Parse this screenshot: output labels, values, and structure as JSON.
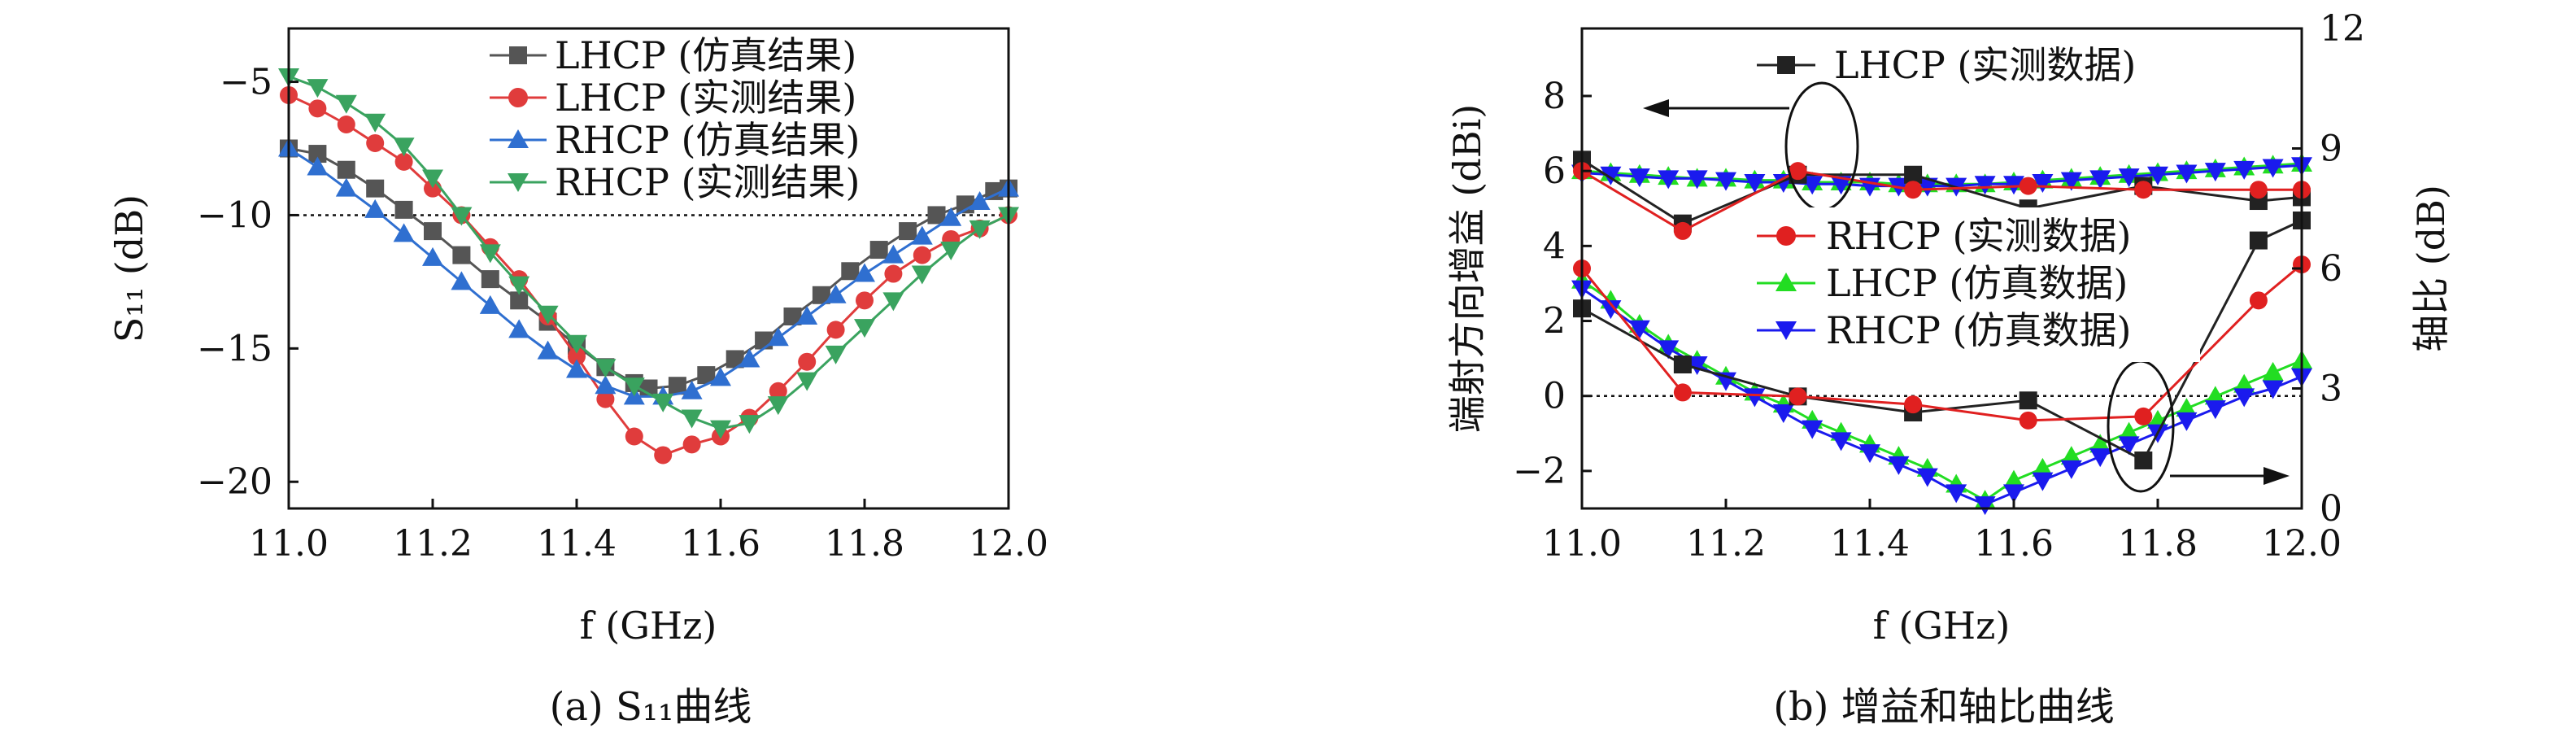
{
  "figure": {
    "caption_a": "(a) S₁₁曲线",
    "caption_b": "(b) 增益和轴比曲线"
  },
  "chart_data": [
    {
      "type": "line",
      "panel": "a",
      "xlabel": "f (GHz)",
      "ylabel": "S₁₁ (dB)",
      "xlim": [
        11.0,
        12.0
      ],
      "ylim": [
        -21,
        -3
      ],
      "x_ticks": [
        "11.0",
        "11.2",
        "11.4",
        "11.6",
        "11.8",
        "12.0"
      ],
      "y_ticks": [
        "−5",
        "−10",
        "−15",
        "−20"
      ],
      "reference_line": -10,
      "legend_position": "top-right",
      "series": [
        {
          "name": "LHCP (仿真结果)",
          "color": "#555555",
          "marker": "square",
          "x": [
            11.0,
            11.04,
            11.08,
            11.12,
            11.16,
            11.2,
            11.24,
            11.28,
            11.32,
            11.36,
            11.4,
            11.44,
            11.48,
            11.5,
            11.54,
            11.58,
            11.62,
            11.66,
            11.7,
            11.74,
            11.78,
            11.82,
            11.86,
            11.9,
            11.94,
            11.98,
            12.0
          ],
          "values": [
            -7.5,
            -7.7,
            -8.3,
            -9.0,
            -9.8,
            -10.6,
            -11.5,
            -12.4,
            -13.2,
            -14.0,
            -14.9,
            -15.7,
            -16.3,
            -16.5,
            -16.4,
            -16.0,
            -15.4,
            -14.7,
            -13.8,
            -13.0,
            -12.1,
            -11.3,
            -10.6,
            -10.0,
            -9.6,
            -9.1,
            -9.0
          ]
        },
        {
          "name": "LHCP (实测结果)",
          "color": "#e03c3c",
          "marker": "circle",
          "x": [
            11.0,
            11.04,
            11.08,
            11.12,
            11.16,
            11.2,
            11.24,
            11.28,
            11.32,
            11.36,
            11.4,
            11.44,
            11.48,
            11.52,
            11.56,
            11.6,
            11.64,
            11.68,
            11.72,
            11.76,
            11.8,
            11.84,
            11.88,
            11.92,
            11.96,
            12.0
          ],
          "values": [
            -5.5,
            -6.0,
            -6.6,
            -7.3,
            -8.0,
            -9.0,
            -10.0,
            -11.2,
            -12.4,
            -13.8,
            -15.3,
            -16.9,
            -18.3,
            -19.0,
            -18.6,
            -18.3,
            -17.6,
            -16.6,
            -15.5,
            -14.3,
            -13.2,
            -12.2,
            -11.5,
            -10.9,
            -10.5,
            -10.0
          ]
        },
        {
          "name": "RHCP (仿真结果)",
          "color": "#2f6fd0",
          "marker": "triangle-up",
          "x": [
            11.0,
            11.04,
            11.08,
            11.12,
            11.16,
            11.2,
            11.24,
            11.28,
            11.32,
            11.36,
            11.4,
            11.44,
            11.48,
            11.52,
            11.56,
            11.6,
            11.64,
            11.68,
            11.72,
            11.76,
            11.8,
            11.84,
            11.88,
            11.92,
            11.96,
            12.0
          ],
          "values": [
            -7.5,
            -8.2,
            -9.0,
            -9.8,
            -10.7,
            -11.6,
            -12.5,
            -13.4,
            -14.3,
            -15.1,
            -15.8,
            -16.4,
            -16.8,
            -16.8,
            -16.6,
            -16.1,
            -15.4,
            -14.6,
            -13.8,
            -13.0,
            -12.2,
            -11.5,
            -10.8,
            -10.1,
            -9.5,
            -9.0
          ]
        },
        {
          "name": "RHCP (实测结果)",
          "color": "#3aa35f",
          "marker": "triangle-down",
          "x": [
            11.0,
            11.04,
            11.08,
            11.12,
            11.16,
            11.2,
            11.24,
            11.28,
            11.32,
            11.36,
            11.4,
            11.44,
            11.48,
            11.52,
            11.56,
            11.6,
            11.64,
            11.68,
            11.72,
            11.76,
            11.8,
            11.84,
            11.88,
            11.92,
            11.96,
            12.0
          ],
          "values": [
            -4.8,
            -5.2,
            -5.8,
            -6.5,
            -7.4,
            -8.6,
            -10.0,
            -11.4,
            -12.6,
            -13.7,
            -14.8,
            -15.7,
            -16.4,
            -17.0,
            -17.6,
            -18.0,
            -17.8,
            -17.1,
            -16.2,
            -15.2,
            -14.2,
            -13.2,
            -12.2,
            -11.3,
            -10.5,
            -10.0
          ]
        }
      ]
    },
    {
      "type": "line",
      "panel": "b",
      "xlabel": "f (GHz)",
      "ylabel": "端射方向增益 (dBi)",
      "ylabel_right": "轴比 (dB)",
      "xlim": [
        11.0,
        12.0
      ],
      "ylim": [
        -3,
        9.8
      ],
      "ylim_right": [
        0,
        12
      ],
      "x_ticks": [
        "11.0",
        "11.2",
        "11.4",
        "11.6",
        "11.8",
        "12.0"
      ],
      "y_ticks": [
        "8",
        "6",
        "4",
        "2",
        "0",
        "−2"
      ],
      "y_ticks_right": [
        "12",
        "9",
        "6",
        "3",
        "0"
      ],
      "reference_line": 0,
      "gain_series": [
        {
          "name": "LHCP (实测数据)",
          "color": "#222222",
          "marker": "square",
          "x": [
            11.0,
            11.14,
            11.3,
            11.46,
            11.62,
            11.78,
            11.94,
            12.0
          ],
          "values": [
            6.3,
            4.6,
            5.9,
            5.9,
            5.0,
            5.6,
            5.2,
            5.3
          ]
        },
        {
          "name": "RHCP (实测数据)",
          "color": "#e02020",
          "marker": "circle",
          "x": [
            11.0,
            11.14,
            11.3,
            11.46,
            11.62,
            11.78,
            11.94,
            12.0
          ],
          "values": [
            6.0,
            4.4,
            6.0,
            5.5,
            5.6,
            5.5,
            5.5,
            5.5
          ]
        },
        {
          "name": "LHCP (仿真数据)",
          "color": "#22dd22",
          "marker": "triangle-up",
          "x": [
            11.0,
            11.04,
            11.08,
            11.12,
            11.16,
            11.2,
            11.24,
            11.28,
            11.32,
            11.36,
            11.4,
            11.44,
            11.48,
            11.52,
            11.56,
            11.6,
            11.64,
            11.68,
            11.72,
            11.76,
            11.8,
            11.84,
            11.88,
            11.92,
            11.96,
            12.0
          ],
          "values": [
            6.0,
            5.95,
            5.9,
            5.85,
            5.8,
            5.8,
            5.75,
            5.75,
            5.7,
            5.7,
            5.7,
            5.65,
            5.65,
            5.65,
            5.65,
            5.7,
            5.75,
            5.8,
            5.85,
            5.9,
            5.95,
            6.0,
            6.05,
            6.1,
            6.15,
            6.2
          ]
        },
        {
          "name": "RHCP (仿真数据)",
          "color": "#1a1aee",
          "marker": "triangle-down",
          "x": [
            11.0,
            11.04,
            11.08,
            11.12,
            11.16,
            11.2,
            11.24,
            11.28,
            11.32,
            11.36,
            11.4,
            11.44,
            11.48,
            11.52,
            11.56,
            11.6,
            11.64,
            11.68,
            11.72,
            11.76,
            11.8,
            11.84,
            11.88,
            11.92,
            11.96,
            12.0
          ],
          "values": [
            5.95,
            5.9,
            5.85,
            5.8,
            5.8,
            5.75,
            5.7,
            5.7,
            5.65,
            5.65,
            5.6,
            5.6,
            5.6,
            5.6,
            5.65,
            5.65,
            5.7,
            5.75,
            5.8,
            5.85,
            5.9,
            5.95,
            6.0,
            6.05,
            6.1,
            6.15
          ]
        }
      ],
      "axial_ratio_series": [
        {
          "name": "LHCP (实测数据)",
          "color": "#222222",
          "marker": "square",
          "x": [
            11.0,
            11.14,
            11.3,
            11.46,
            11.62,
            11.78,
            11.94,
            12.0
          ],
          "values": [
            5.0,
            3.6,
            2.8,
            2.4,
            2.7,
            1.2,
            6.7,
            7.2
          ]
        },
        {
          "name": "RHCP (实测数据)",
          "color": "#e02020",
          "marker": "circle",
          "x": [
            11.0,
            11.14,
            11.3,
            11.46,
            11.62,
            11.78,
            11.94,
            12.0
          ],
          "values": [
            6.0,
            2.9,
            2.8,
            2.6,
            2.2,
            2.3,
            5.2,
            6.1
          ]
        },
        {
          "name": "LHCP (仿真数据)",
          "color": "#22dd22",
          "marker": "triangle-up",
          "x": [
            11.0,
            11.04,
            11.08,
            11.12,
            11.16,
            11.2,
            11.24,
            11.28,
            11.32,
            11.36,
            11.4,
            11.44,
            11.48,
            11.52,
            11.56,
            11.6,
            11.64,
            11.68,
            11.72,
            11.76,
            11.8,
            11.84,
            11.88,
            11.92,
            11.96,
            12.0
          ],
          "values": [
            5.7,
            5.2,
            4.6,
            4.1,
            3.7,
            3.3,
            2.9,
            2.6,
            2.2,
            1.9,
            1.6,
            1.3,
            1.0,
            0.6,
            0.2,
            0.7,
            1.0,
            1.3,
            1.6,
            1.9,
            2.2,
            2.5,
            2.8,
            3.1,
            3.4,
            3.7
          ]
        },
        {
          "name": "RHCP (仿真数据)",
          "color": "#1a1aee",
          "marker": "triangle-down",
          "x": [
            11.0,
            11.04,
            11.08,
            11.12,
            11.16,
            11.2,
            11.24,
            11.28,
            11.32,
            11.36,
            11.4,
            11.44,
            11.48,
            11.52,
            11.56,
            11.6,
            11.64,
            11.68,
            11.72,
            11.76,
            11.8,
            11.84,
            11.88,
            11.92,
            11.96,
            12.0
          ],
          "values": [
            5.5,
            5.0,
            4.5,
            4.0,
            3.6,
            3.2,
            2.8,
            2.4,
            2.0,
            1.7,
            1.4,
            1.1,
            0.8,
            0.4,
            0.1,
            0.4,
            0.7,
            1.0,
            1.3,
            1.6,
            1.9,
            2.2,
            2.5,
            2.8,
            3.0,
            3.3
          ]
        }
      ]
    }
  ]
}
